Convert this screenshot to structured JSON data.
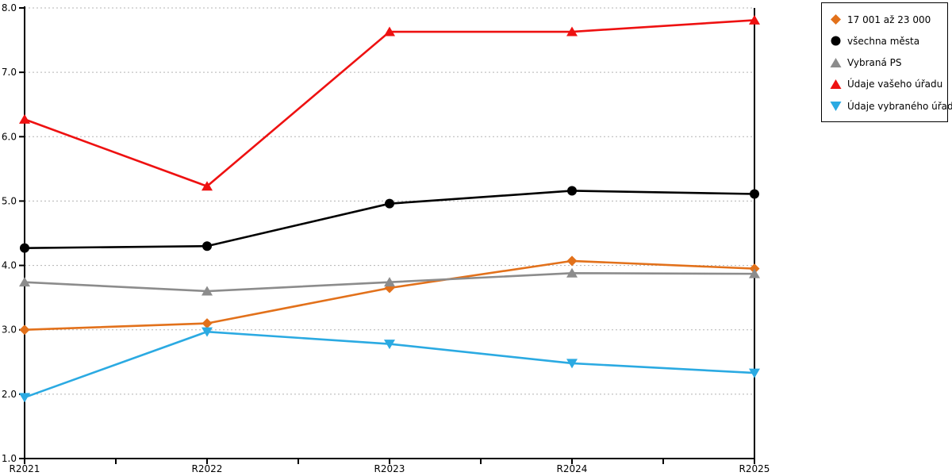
{
  "chart_data": {
    "type": "line",
    "title": "",
    "xlabel": "",
    "ylabel": "",
    "categories": [
      "R2021",
      "R2022",
      "R2023",
      "R2024",
      "R2025"
    ],
    "series": [
      {
        "name": "17 001 až 23 000",
        "marker": "diamond",
        "color": "#E2711B",
        "values": [
          3.0,
          3.1,
          3.65,
          4.07,
          3.95
        ]
      },
      {
        "name": "všechna města",
        "marker": "circle",
        "color": "#000000",
        "values": [
          4.27,
          4.3,
          4.96,
          5.16,
          5.11
        ]
      },
      {
        "name": "Vybraná PS",
        "marker": "triangle-up",
        "color": "#8C8C8C",
        "values": [
          3.74,
          3.6,
          3.74,
          3.88,
          3.87
        ]
      },
      {
        "name": "Údaje vašeho úřadu",
        "marker": "triangle-up",
        "color": "#EE1111",
        "values": [
          6.27,
          5.23,
          7.63,
          7.63,
          7.81
        ]
      },
      {
        "name": "Údaje vybraného úřadu",
        "marker": "triangle-down",
        "color": "#2BAAE2",
        "values": [
          1.95,
          2.97,
          2.78,
          2.48,
          2.33
        ]
      }
    ],
    "ylim": [
      1.0,
      8.0
    ],
    "ytick_step": 1.0,
    "ytick_labels": [
      "1.0",
      "2.0",
      "3.0",
      "4.0",
      "5.0",
      "6.0",
      "7.0",
      "8.0"
    ],
    "grid": "horizontal dashed gridlines at each y tick",
    "legend_position": "top-right outside plot"
  },
  "colors": {
    "background": "#FFFFFF",
    "axis": "#000000",
    "gridline": "#B3B3B3",
    "text": "#000000"
  }
}
